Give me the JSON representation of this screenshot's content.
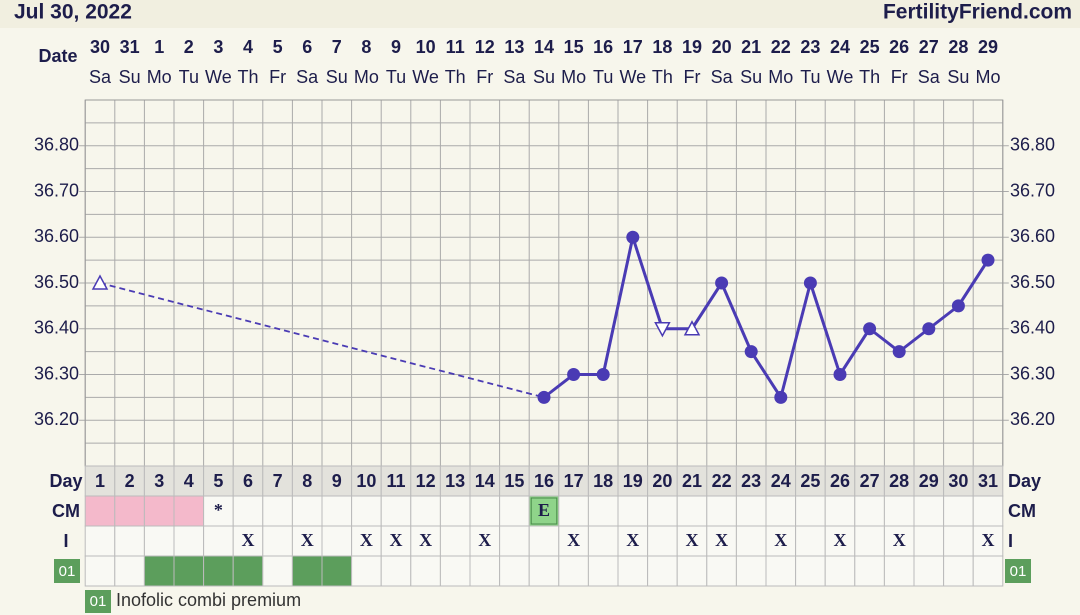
{
  "header": {
    "date": "Jul 30, 2022",
    "site": "FertilityFriend.com"
  },
  "chart_data": {
    "type": "line",
    "date_label": "Date",
    "dates": [
      "30",
      "31",
      "1",
      "2",
      "3",
      "4",
      "5",
      "6",
      "7",
      "8",
      "9",
      "10",
      "11",
      "12",
      "13",
      "14",
      "15",
      "16",
      "17",
      "18",
      "19",
      "20",
      "21",
      "22",
      "23",
      "24",
      "25",
      "26",
      "27",
      "28",
      "29"
    ],
    "weekdays": [
      "Sa",
      "Su",
      "Mo",
      "Tu",
      "We",
      "Th",
      "Fr",
      "Sa",
      "Su",
      "Mo",
      "Tu",
      "We",
      "Th",
      "Fr",
      "Sa",
      "Su",
      "Mo",
      "Tu",
      "We",
      "Th",
      "Fr",
      "Sa",
      "Su",
      "Mo",
      "Tu",
      "We",
      "Th",
      "Fr",
      "Sa",
      "Su",
      "Mo"
    ],
    "x": [
      1,
      2,
      3,
      4,
      5,
      6,
      7,
      8,
      9,
      10,
      11,
      12,
      13,
      14,
      15,
      16,
      17,
      18,
      19,
      20,
      21,
      22,
      23,
      24,
      25,
      26,
      27,
      28,
      29,
      30,
      31
    ],
    "series": [
      {
        "color": "#4a3bb4",
        "values": [
          36.5,
          null,
          null,
          null,
          null,
          null,
          null,
          null,
          null,
          null,
          null,
          null,
          null,
          null,
          null,
          36.25,
          36.3,
          36.3,
          36.6,
          36.4,
          36.4,
          36.5,
          36.35,
          36.25,
          36.5,
          36.3,
          36.4,
          36.35,
          36.4,
          36.45,
          36.55
        ],
        "markers": [
          "triangle-up",
          null,
          null,
          null,
          null,
          null,
          null,
          null,
          null,
          null,
          null,
          null,
          null,
          null,
          null,
          "circle",
          "circle",
          "circle",
          "circle",
          "triangle-down",
          "triangle-up",
          "circle",
          "circle",
          "circle",
          "circle",
          "circle",
          "circle",
          "circle",
          "circle",
          "circle",
          "circle"
        ]
      }
    ],
    "ylim": [
      36.1,
      36.9
    ],
    "yticks": [
      {
        "value": 36.2,
        "label": "36.20"
      },
      {
        "value": 36.3,
        "label": "36.30"
      },
      {
        "value": 36.4,
        "label": "36.40"
      },
      {
        "value": 36.5,
        "label": "36.50"
      },
      {
        "value": 36.6,
        "label": "36.60"
      },
      {
        "value": 36.7,
        "label": "36.70"
      },
      {
        "value": 36.8,
        "label": "36.80"
      }
    ],
    "grid": true
  },
  "table": {
    "day_label": "Day",
    "cm": {
      "label": "CM",
      "values": [
        null,
        null,
        null,
        null,
        "*",
        null,
        null,
        null,
        null,
        null,
        null,
        null,
        null,
        null,
        null,
        "E",
        null,
        null,
        null,
        null,
        null,
        null,
        null,
        null,
        null,
        null,
        null,
        null,
        null,
        null,
        null
      ],
      "colors": [
        "#f4b9cb",
        "#f4b9cb",
        "#f4b9cb",
        "#f4b9cb",
        null,
        null,
        null,
        null,
        null,
        null,
        null,
        null,
        null,
        null,
        null,
        "#8fd48a",
        null,
        null,
        null,
        null,
        null,
        null,
        null,
        null,
        null,
        null,
        null,
        null,
        null,
        null,
        null
      ]
    },
    "i": {
      "label": "I",
      "values": [
        null,
        null,
        null,
        null,
        null,
        "X",
        null,
        "X",
        null,
        "X",
        "X",
        "X",
        null,
        "X",
        null,
        null,
        "X",
        null,
        "X",
        null,
        "X",
        "X",
        null,
        "X",
        null,
        "X",
        null,
        "X",
        null,
        null,
        "X"
      ]
    },
    "custom": {
      "label": "01",
      "colors": [
        null,
        null,
        "#5c9e5c",
        "#5c9e5c",
        "#5c9e5c",
        "#5c9e5c",
        null,
        "#5c9e5c",
        "#5c9e5c",
        null,
        null,
        null,
        null,
        null,
        null,
        null,
        null,
        null,
        null,
        null,
        null,
        null,
        null,
        null,
        null,
        null,
        null,
        null,
        null,
        null,
        null
      ]
    },
    "legend": {
      "code": "01",
      "text": "Inofolic combi premium"
    }
  }
}
